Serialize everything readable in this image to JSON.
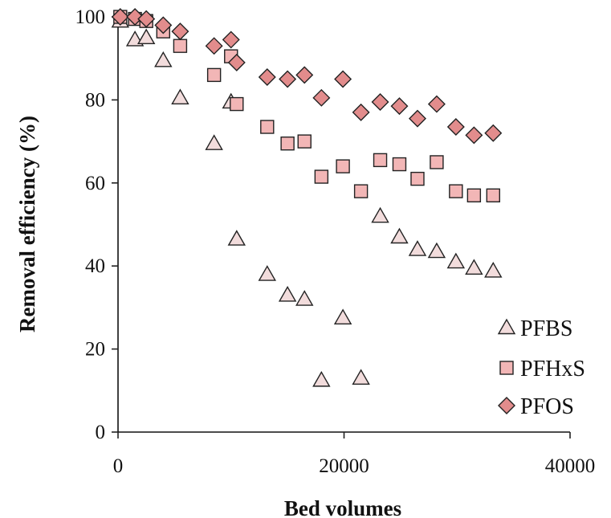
{
  "chart_data": {
    "type": "scatter",
    "title": "",
    "xlabel": "Bed volumes",
    "ylabel": "Removal efficiency (%)",
    "xlim": [
      0,
      40000
    ],
    "ylim": [
      0,
      100
    ],
    "x_ticks": [
      "0",
      "20000",
      "40000"
    ],
    "y_ticks": [
      "0",
      "20",
      "40",
      "60",
      "80",
      "100"
    ],
    "grid": false,
    "legend_position": "bottom-right",
    "series": [
      {
        "name": "PFBS",
        "marker": "triangle",
        "fill": "#f2dcdc",
        "points": [
          [
            200,
            99
          ],
          [
            1500,
            94.5
          ],
          [
            2500,
            95
          ],
          [
            4000,
            89.5
          ],
          [
            5500,
            80.5
          ],
          [
            8500,
            69.5
          ],
          [
            10000,
            79.5
          ],
          [
            10500,
            46.5
          ],
          [
            13200,
            38
          ],
          [
            15000,
            33
          ],
          [
            16500,
            32
          ],
          [
            18000,
            12.5
          ],
          [
            19900,
            27.5
          ],
          [
            21500,
            13
          ],
          [
            23200,
            52
          ],
          [
            24900,
            47
          ],
          [
            26500,
            44
          ],
          [
            28200,
            43.5
          ],
          [
            29900,
            41
          ],
          [
            31500,
            39.5
          ],
          [
            33200,
            38.8
          ]
        ]
      },
      {
        "name": "PFHxS",
        "marker": "square",
        "fill": "#f2b6b6",
        "points": [
          [
            200,
            100
          ],
          [
            1500,
            99.5
          ],
          [
            2500,
            99
          ],
          [
            4000,
            96.5
          ],
          [
            5500,
            93
          ],
          [
            8500,
            86
          ],
          [
            10000,
            90.5
          ],
          [
            10500,
            79
          ],
          [
            13200,
            73.5
          ],
          [
            15000,
            69.5
          ],
          [
            16500,
            70
          ],
          [
            18000,
            61.5
          ],
          [
            19900,
            64
          ],
          [
            21500,
            58
          ],
          [
            23200,
            65.5
          ],
          [
            24900,
            64.5
          ],
          [
            26500,
            61
          ],
          [
            28200,
            65
          ],
          [
            29900,
            58
          ],
          [
            31500,
            57
          ],
          [
            33200,
            57
          ]
        ]
      },
      {
        "name": "PFOS",
        "marker": "diamond",
        "fill": "#e28c8c",
        "points": [
          [
            200,
            100
          ],
          [
            1500,
            100
          ],
          [
            2500,
            99.5
          ],
          [
            4000,
            98
          ],
          [
            5500,
            96.5
          ],
          [
            8500,
            93
          ],
          [
            10000,
            94.5
          ],
          [
            10500,
            89
          ],
          [
            13200,
            85.5
          ],
          [
            15000,
            85
          ],
          [
            16500,
            86
          ],
          [
            18000,
            80.5
          ],
          [
            19900,
            85
          ],
          [
            21500,
            77
          ],
          [
            23200,
            79.5
          ],
          [
            24900,
            78.5
          ],
          [
            26500,
            75.5
          ],
          [
            28200,
            79
          ],
          [
            29900,
            73.5
          ],
          [
            31500,
            71.5
          ],
          [
            33200,
            72
          ]
        ]
      }
    ]
  },
  "colors": {
    "stroke": "#222222",
    "pfbs_fill": "#f2dcdc",
    "pfhxs_fill": "#f2b6b6",
    "pfos_fill": "#e28c8c"
  }
}
